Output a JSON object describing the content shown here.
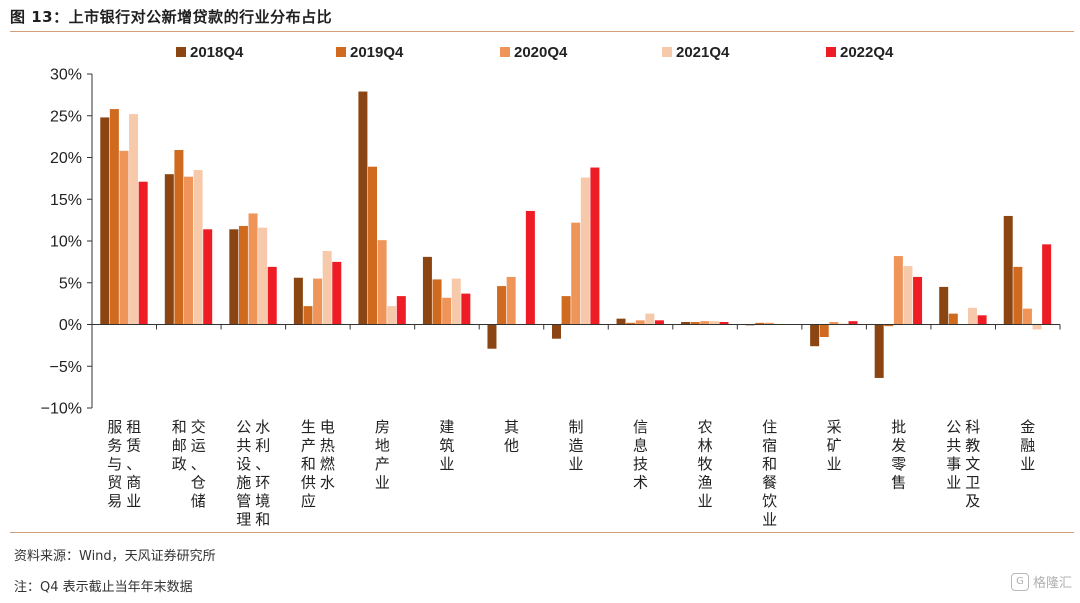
{
  "header": {
    "title": "图 13：上市银行对公新增贷款的行业分布占比"
  },
  "footer": {
    "source": "资料来源：Wind，天风证券研究所",
    "note": "注：Q4 表示截止当年年末数据",
    "brand": "格隆汇"
  },
  "colors": {
    "2018Q4": "#8b4513",
    "2019Q4": "#cf6a1f",
    "2020Q4": "#f0955a",
    "2021Q4": "#f7c9ab",
    "2022Q4": "#ee1c25"
  },
  "chart_data": {
    "type": "bar",
    "ylim": [
      -10,
      30
    ],
    "yticks": [
      -10,
      -5,
      0,
      5,
      10,
      15,
      20,
      25,
      30
    ],
    "ytick_labels": [
      "−10%",
      "−5%",
      "0%",
      "5%",
      "10%",
      "15%",
      "20%",
      "25%",
      "30%"
    ],
    "legend_position": "top",
    "categories": [
      "租赁、商业服务与贸易",
      "交运、仓储和邮政",
      "水利、环境和公共设施管理",
      "电热燃水生产和供应",
      "房地产业",
      "建筑业",
      "其他",
      "制造业",
      "信息技术",
      "农林牧渔业",
      "住宿和餐饮业",
      "采矿业",
      "批发零售",
      "科教文卫及公共事业",
      "金融业"
    ],
    "category_label_columns": [
      [
        "租赁、商业",
        "服务与贸易"
      ],
      [
        "交运、仓储",
        "和邮政"
      ],
      [
        "水利、环境和",
        "公共设施管理"
      ],
      [
        "电热燃水",
        "生产和供应"
      ],
      [
        "房地产业"
      ],
      [
        "建筑业"
      ],
      [
        "其他"
      ],
      [
        "制造业"
      ],
      [
        "信息技术"
      ],
      [
        "农林牧渔业"
      ],
      [
        "住宿和餐饮业"
      ],
      [
        "采矿业"
      ],
      [
        "批发零售"
      ],
      [
        "科教文卫及",
        "公共事业"
      ],
      [
        "金融业"
      ]
    ],
    "series": [
      {
        "name": "2018Q4",
        "values": [
          24.8,
          18.0,
          11.4,
          5.6,
          27.9,
          8.1,
          -2.9,
          -1.7,
          0.7,
          0.3,
          -0.1,
          -2.6,
          -6.4,
          4.5,
          13.0
        ]
      },
      {
        "name": "2019Q4",
        "values": [
          25.8,
          20.9,
          11.8,
          2.2,
          18.9,
          5.4,
          4.6,
          3.4,
          0.2,
          0.3,
          0.2,
          -1.5,
          -0.2,
          1.3,
          6.9
        ]
      },
      {
        "name": "2020Q4",
        "values": [
          20.8,
          17.7,
          13.3,
          5.5,
          10.1,
          3.2,
          5.7,
          12.2,
          0.5,
          0.4,
          0.2,
          0.3,
          8.2,
          0.0,
          1.9
        ]
      },
      {
        "name": "2021Q4",
        "values": [
          25.2,
          18.5,
          11.6,
          8.8,
          2.2,
          5.5,
          0.0,
          17.6,
          1.3,
          0.4,
          0.0,
          0.1,
          7.0,
          2.0,
          -0.6
        ]
      },
      {
        "name": "2022Q4",
        "values": [
          17.1,
          11.4,
          6.9,
          7.5,
          3.4,
          3.7,
          13.6,
          18.8,
          0.5,
          0.3,
          0.0,
          0.4,
          5.7,
          1.1,
          9.6
        ]
      }
    ]
  }
}
